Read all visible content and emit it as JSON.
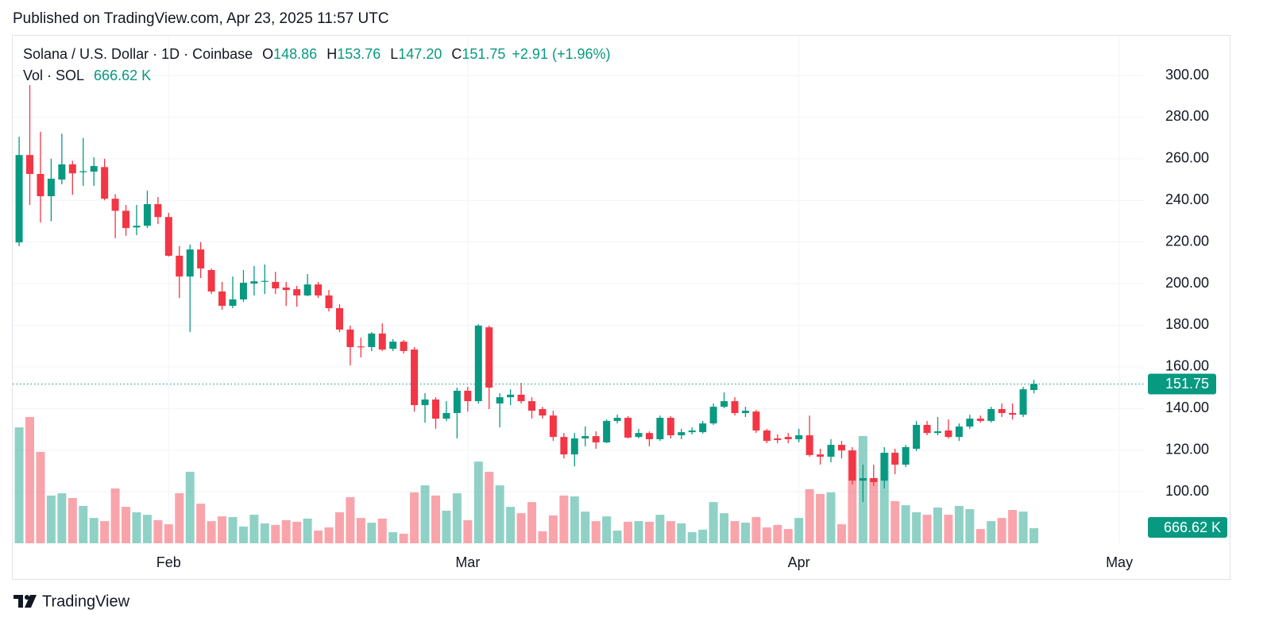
{
  "chart_data": {
    "type": "candlestick",
    "published": "Published on TradingView.com, Apr 23, 2025 11:57 UTC",
    "symbol": "Solana / U.S. Dollar · 1D · Coinbase",
    "ohlc_legend": [
      {
        "key": "O",
        "value": "148.86"
      },
      {
        "key": "H",
        "value": "153.76"
      },
      {
        "key": "L",
        "value": "147.20"
      },
      {
        "key": "C",
        "value": "151.75"
      }
    ],
    "change": "+2.91 (+1.96%)",
    "volume_title": "Vol · SOL",
    "brand": "TradingView",
    "up_color": "#089981",
    "down_color": "#f23645",
    "grid": true,
    "open": [
      219.8,
      261.8,
      252.7,
      242,
      250,
      257.3,
      253.5,
      253.8,
      256,
      240.8,
      235,
      227,
      227.8,
      238.2,
      232,
      213.4,
      203.4,
      216.4,
      206.5,
      196.2,
      189.3,
      192.4,
      200,
      201.1,
      200.8,
      198.1,
      197.3,
      194.3,
      199.6,
      194.3,
      188.2,
      177.9,
      169.8,
      169.5,
      176,
      168.7,
      172.1,
      168.3,
      141.6,
      144.3,
      135.1,
      137.8,
      148.5,
      143.5,
      179,
      142.4,
      145.4,
      146.6,
      143.5,
      139.7,
      136.6,
      126.3,
      117.9,
      125.6,
      126.7,
      123.7,
      134,
      135.5,
      126.3,
      128.2,
      125.2,
      135.5,
      127.1,
      128.6,
      128.6,
      132.8,
      140.8,
      143.5,
      137.8,
      138.5,
      129.4,
      125.6,
      126.3,
      125.2,
      127.1,
      117.9,
      116.8,
      122.5,
      119.8,
      105.3,
      106.5,
      105.3,
      118.7,
      113,
      120.6,
      132.1,
      128.2,
      129.4,
      126.3,
      131.3,
      135.1,
      134,
      139.7,
      137.8,
      137,
      148.86
    ],
    "high": [
      270.6,
      295.4,
      273,
      260,
      272,
      259,
      270,
      260.7,
      260,
      243,
      237.8,
      237.8,
      244.7,
      241.6,
      234,
      218,
      218.7,
      220,
      207.3,
      200.8,
      203.4,
      206.5,
      208.4,
      209.2,
      205.7,
      200.8,
      198.9,
      204.6,
      200.8,
      196.9,
      190.1,
      179.8,
      174,
      176.7,
      180.9,
      173.3,
      172.9,
      169.5,
      147.3,
      145.4,
      143.5,
      150,
      150.4,
      180.5,
      179.8,
      147.3,
      149.2,
      152.3,
      145.4,
      140.8,
      138.9,
      128.2,
      128.2,
      131.3,
      129,
      134.7,
      137,
      136.3,
      130.2,
      129,
      136.6,
      136.3,
      130.2,
      130.9,
      134,
      142.4,
      147.7,
      145.4,
      140.8,
      139.3,
      130.2,
      127.5,
      128.2,
      130.2,
      136.6,
      120.6,
      125.2,
      124.4,
      121.4,
      113,
      113,
      121.4,
      120.6,
      122.5,
      134,
      134,
      135.9,
      134.7,
      132.8,
      137,
      136.6,
      140.8,
      142.4,
      142.4,
      150.4,
      153.76
    ],
    "low": [
      218,
      237.8,
      229.4,
      230,
      247.7,
      242.7,
      247,
      247,
      240,
      221.8,
      223,
      223.3,
      226.7,
      228.6,
      213,
      193,
      176.7,
      202.7,
      195,
      187.4,
      188.2,
      191.2,
      194.3,
      195,
      195,
      189.3,
      188.9,
      193.9,
      193.1,
      186.6,
      176.7,
      160.7,
      164.5,
      167.6,
      167.6,
      167.6,
      166.4,
      138.5,
      133.2,
      130.2,
      134,
      125.6,
      138.5,
      142.4,
      139.7,
      130.9,
      141.6,
      142.4,
      135.1,
      135.1,
      124.4,
      116,
      112.2,
      121.8,
      120.6,
      123.3,
      132.8,
      125.6,
      125.6,
      121.8,
      124.4,
      125.6,
      125.2,
      127.5,
      127.9,
      132.1,
      140.1,
      136.6,
      135.9,
      128.2,
      123.3,
      123.3,
      123.3,
      123.7,
      116.8,
      113,
      114.1,
      116,
      103.4,
      95,
      102.7,
      101.5,
      108.4,
      111.8,
      119.5,
      127.1,
      127.1,
      125.6,
      124.4,
      130.2,
      133.2,
      133.2,
      135.9,
      134.7,
      135.9,
      147.2
    ],
    "close": [
      261.8,
      252.7,
      242,
      250.4,
      257.3,
      253,
      254,
      256.5,
      240.8,
      235,
      226.7,
      227.8,
      238.2,
      232,
      213.4,
      203.4,
      216.4,
      207.3,
      196.2,
      189.3,
      192.4,
      200.4,
      201.1,
      201.3,
      197.7,
      196.9,
      194.3,
      199.6,
      194.3,
      188.2,
      177.9,
      169.5,
      169.5,
      176,
      168.3,
      172.1,
      167.6,
      141.6,
      144.3,
      135.1,
      137.8,
      148.5,
      143.5,
      179.8,
      150,
      145.4,
      146.6,
      143.5,
      138.9,
      136.6,
      126.3,
      117.9,
      125.6,
      126.7,
      123.7,
      134,
      135.5,
      126,
      128.2,
      125.2,
      135.5,
      127.1,
      128.6,
      129.4,
      132.8,
      140.8,
      143.5,
      137.8,
      138.9,
      129.4,
      124.4,
      124.8,
      125.2,
      127.1,
      117.6,
      116.8,
      122.5,
      119.8,
      105.3,
      106.5,
      104.6,
      118.7,
      113,
      121.4,
      132.1,
      128.2,
      129,
      126.3,
      131.3,
      135.1,
      134,
      139.7,
      137.8,
      137,
      149.2,
      151.75
    ],
    "volume": [
      5120000,
      5580000,
      4040000,
      2110000,
      2210000,
      2000000,
      1650000,
      1120000,
      980000,
      2420000,
      1610000,
      1370000,
      1260000,
      1020000,
      840000,
      2210000,
      3160000,
      1750000,
      980000,
      1190000,
      1160000,
      740000,
      1260000,
      880000,
      810000,
      1020000,
      950000,
      1090000,
      560000,
      700000,
      1370000,
      2040000,
      1120000,
      910000,
      1090000,
      490000,
      420000,
      2250000,
      2560000,
      2110000,
      1440000,
      2210000,
      1020000,
      3610000,
      3160000,
      2560000,
      1610000,
      1330000,
      1820000,
      530000,
      1230000,
      2110000,
      2070000,
      1400000,
      980000,
      1190000,
      560000,
      950000,
      980000,
      950000,
      1260000,
      980000,
      880000,
      490000,
      600000,
      1820000,
      1330000,
      980000,
      910000,
      1160000,
      700000,
      810000,
      630000,
      1120000,
      2390000,
      2180000,
      2250000,
      840000,
      4110000,
      4740000,
      2880000,
      4000000,
      1860000,
      1680000,
      1370000,
      1260000,
      1580000,
      1260000,
      1650000,
      1510000,
      630000,
      980000,
      1120000,
      1470000,
      1400000,
      666620
    ],
    "ylim": [
      75.2,
      319.5
    ],
    "yticks": [
      {
        "value": 100,
        "label": "100.00"
      },
      {
        "value": 120,
        "label": "120.00"
      },
      {
        "value": 140,
        "label": "140.00"
      },
      {
        "value": 160,
        "label": "160.00"
      },
      {
        "value": 180,
        "label": "180.00"
      },
      {
        "value": 200,
        "label": "200.00"
      },
      {
        "value": 220,
        "label": "220.00"
      },
      {
        "value": 240,
        "label": "240.00"
      },
      {
        "value": 260,
        "label": "260.00"
      },
      {
        "value": 280,
        "label": "280.00"
      },
      {
        "value": 300,
        "label": "300.00"
      }
    ],
    "xlim": [
      -0.6,
      105.3
    ],
    "xticks": [
      {
        "value": 14,
        "label": "Feb"
      },
      {
        "value": 42,
        "label": "Mar"
      },
      {
        "value": 73,
        "label": "Apr"
      },
      {
        "value": 103,
        "label": "May"
      }
    ],
    "last_price": {
      "value": 151.75,
      "label": "151.75"
    },
    "last_volume": {
      "value": 666620,
      "label": "666.62 K"
    }
  }
}
